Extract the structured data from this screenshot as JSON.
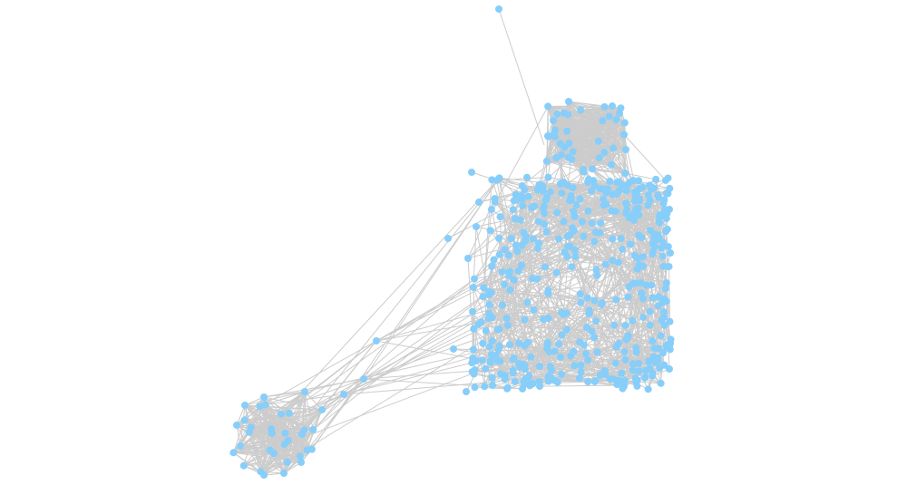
{
  "graph": {
    "node_color": "#87CEFA",
    "edge_color": "#CCCCCC",
    "background": "#FFFFFF"
  }
}
